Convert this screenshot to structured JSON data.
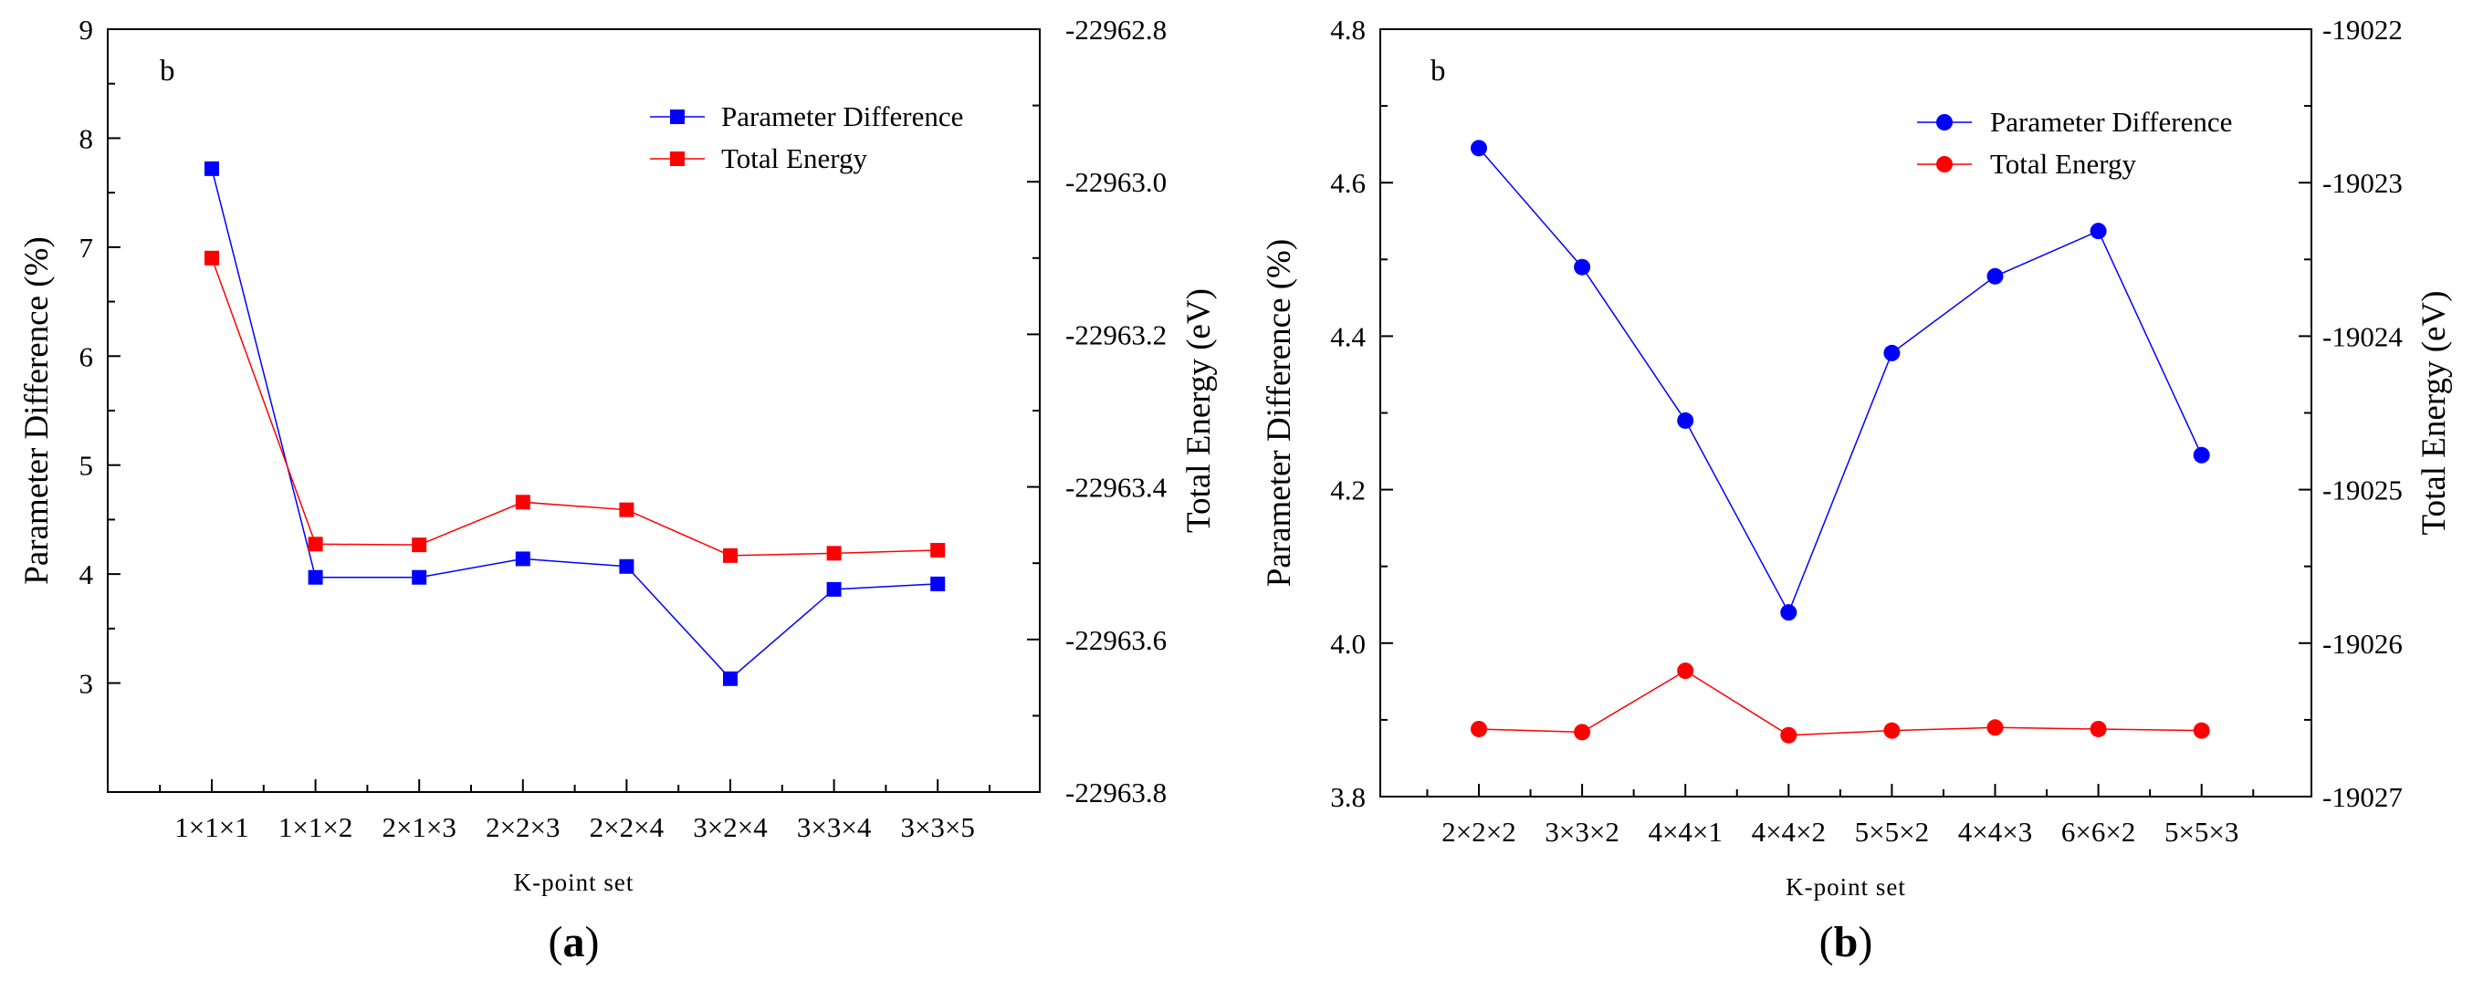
{
  "colors": {
    "series1": "#0000ff",
    "series2": "#ff0000"
  },
  "chart_data": [
    {
      "type": "line",
      "panel_tag": "b",
      "caption": {
        "open": "(",
        "letter": "a",
        "close": ")"
      },
      "xlabel": "K-point set",
      "ylabel_left": "Parameter Difference (%)",
      "ylabel_right": "Total Energy (eV)",
      "categories": [
        "1×1×1",
        "1×1×2",
        "2×1×3",
        "2×2×3",
        "2×2×4",
        "3×2×4",
        "3×3×4",
        "3×3×5"
      ],
      "y_left": {
        "min": 2.0,
        "max": 9.0,
        "ticks": [
          "3",
          "4",
          "5",
          "6",
          "7",
          "8",
          "9"
        ],
        "tick_values": [
          3,
          4,
          5,
          6,
          7,
          8,
          9
        ]
      },
      "y_right": {
        "min": -22963.8,
        "max": -22962.8,
        "ticks": [
          "-22962.8",
          "-22963.0",
          "-22963.2",
          "-22963.4",
          "-22963.6",
          "-22963.8"
        ],
        "tick_values": [
          -22962.8,
          -22963.0,
          -22963.2,
          -22963.4,
          -22963.6,
          -22963.8
        ]
      },
      "marker": "square",
      "series": [
        {
          "name": "Parameter Difference",
          "axis": "left",
          "color": "#0000ff",
          "values": [
            7.72,
            3.97,
            3.97,
            4.14,
            4.07,
            3.04,
            3.86,
            3.91
          ]
        },
        {
          "name": "Total Energy",
          "axis": "right",
          "color": "#ff0000",
          "values": [
            -22963.1,
            -22963.475,
            -22963.476,
            -22963.42,
            -22963.43,
            -22963.49,
            -22963.487,
            -22963.483
          ]
        }
      ]
    },
    {
      "type": "line",
      "panel_tag": "b",
      "caption": {
        "open": "(",
        "letter": "b",
        "close": ")"
      },
      "xlabel": "K-point set",
      "ylabel_left": "Parameter Difference (%)",
      "ylabel_right": "Total Energy (eV)",
      "categories": [
        "2×2×2",
        "3×3×2",
        "4×4×1",
        "4×4×2",
        "5×5×2",
        "4×4×3",
        "6×6×2",
        "5×5×3"
      ],
      "y_left": {
        "min": 3.8,
        "max": 4.8,
        "ticks": [
          "3.8",
          "4.0",
          "4.2",
          "4.4",
          "4.6",
          "4.8"
        ],
        "tick_values": [
          3.8,
          4.0,
          4.2,
          4.4,
          4.6,
          4.8
        ]
      },
      "y_right": {
        "min": -19027,
        "max": -19022,
        "ticks": [
          "-19022",
          "-19023",
          "-19024",
          "-19025",
          "-19026",
          "-19027"
        ],
        "tick_values": [
          -19022,
          -19023,
          -19024,
          -19025,
          -19026,
          -19027
        ]
      },
      "marker": "circle",
      "series": [
        {
          "name": "Parameter Difference",
          "axis": "left",
          "color": "#0000ff",
          "values": [
            4.645,
            4.49,
            4.29,
            4.04,
            4.378,
            4.478,
            4.537,
            4.245
          ]
        },
        {
          "name": "Total Energy",
          "axis": "right",
          "color": "#ff0000",
          "values": [
            -19026.56,
            -19026.58,
            -19026.18,
            -19026.6,
            -19026.57,
            -19026.55,
            -19026.56,
            -19026.57
          ]
        }
      ]
    }
  ]
}
